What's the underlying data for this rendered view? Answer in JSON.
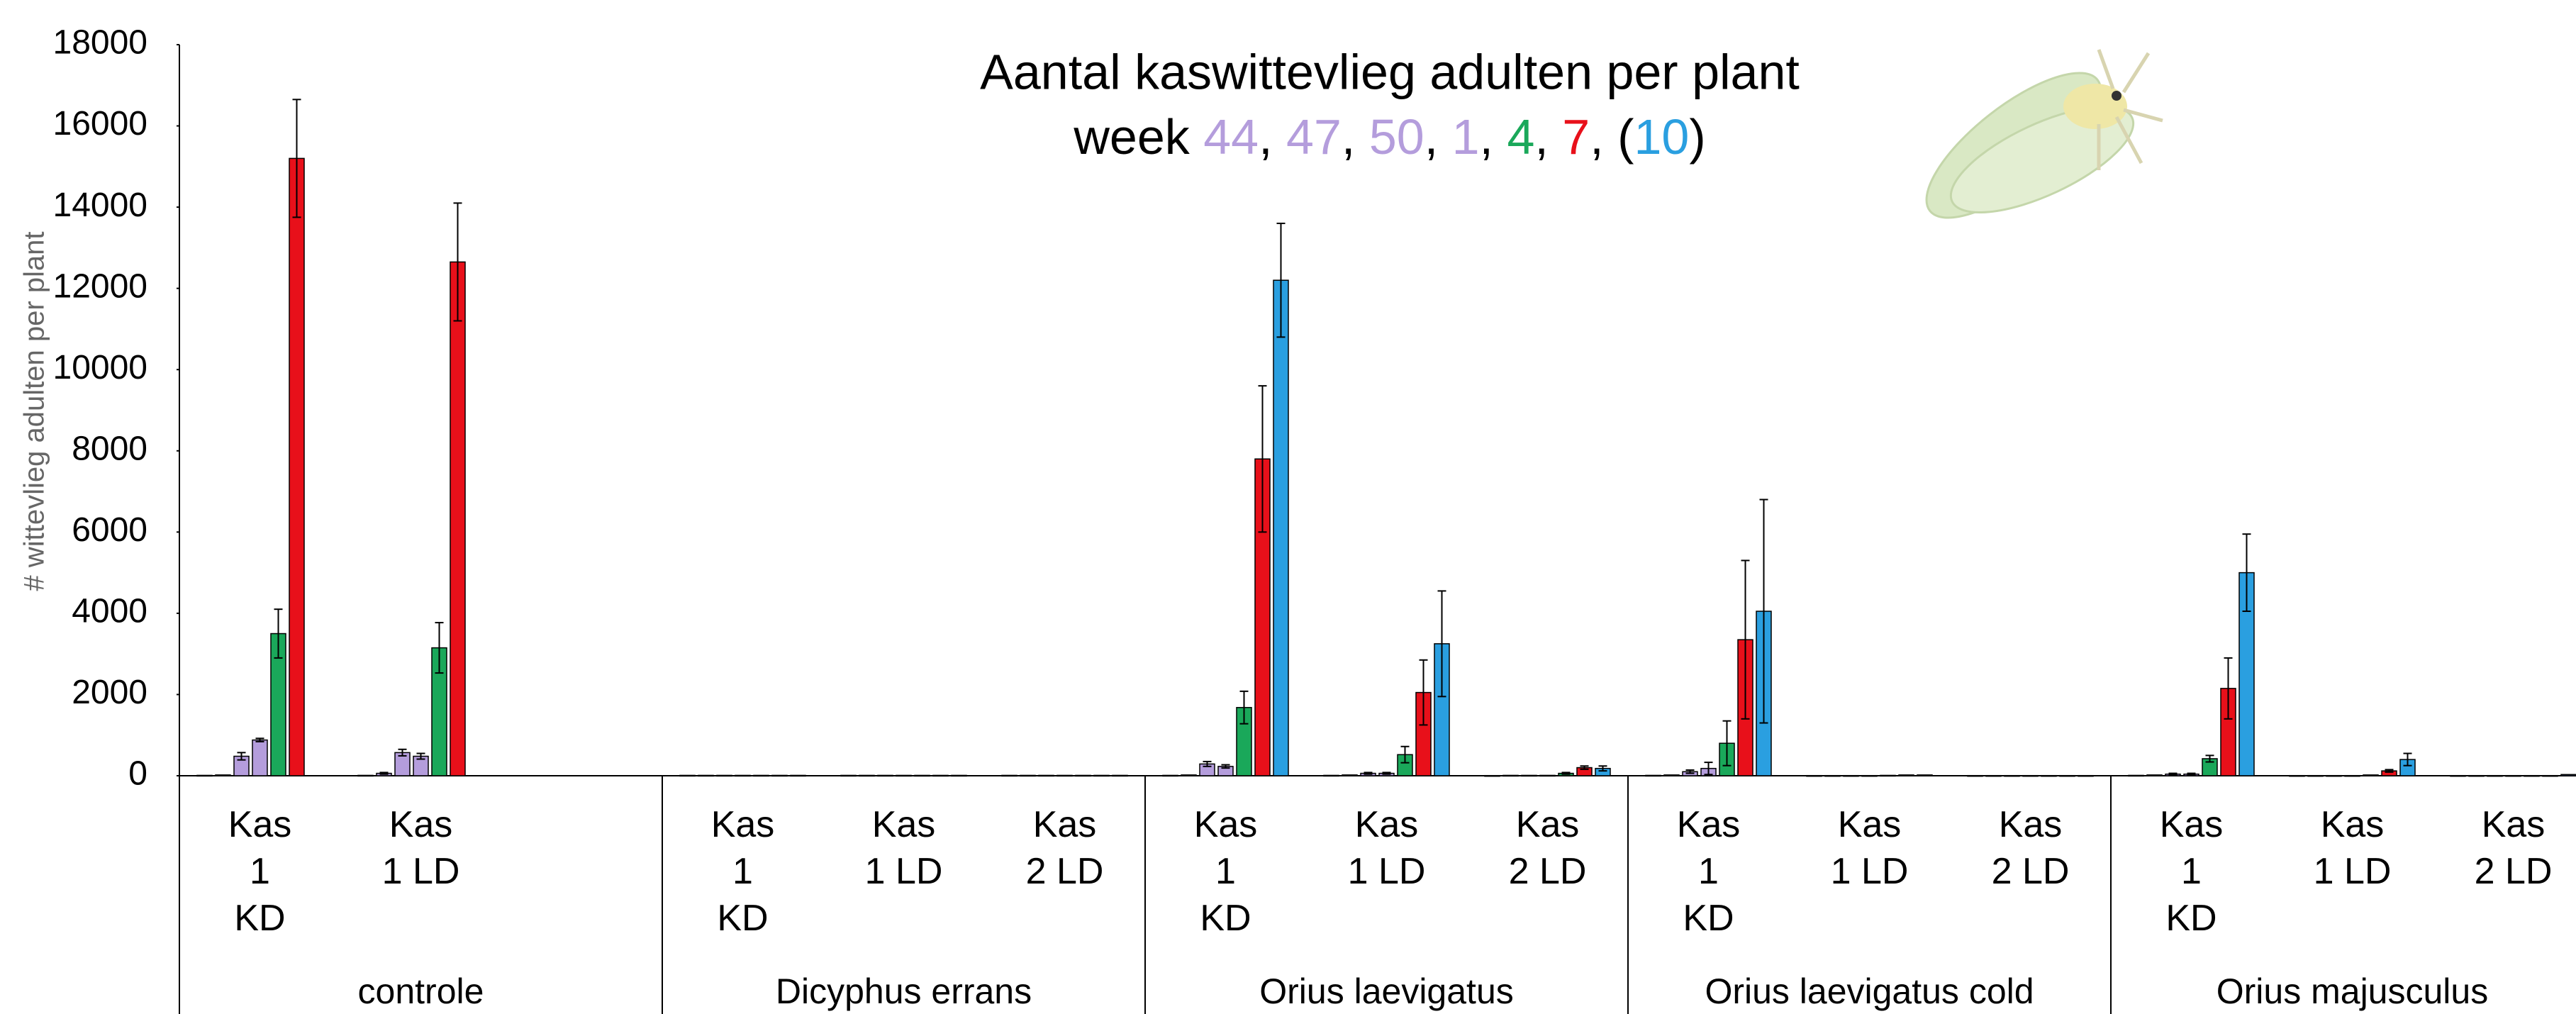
{
  "chart_data": {
    "type": "bar",
    "title": "Aantal kaswittevlieg adulten per plant",
    "legend": {
      "prefix": "week ",
      "separator": ", ",
      "open": "(",
      "close": ")"
    },
    "y_label": "# wittevlieg adulten per plant",
    "ylim": [
      0,
      18000
    ],
    "yticks": [
      0,
      2000,
      4000,
      6000,
      8000,
      10000,
      12000,
      14000,
      16000,
      18000
    ],
    "groups": [
      {
        "name": "controle",
        "categories": [
          "Kas 1 KD",
          "Kas 1 LD",
          null
        ]
      },
      {
        "name": "Dicyphus errans",
        "categories": [
          "Kas 1 KD",
          "Kas 1 LD",
          "Kas 2 LD"
        ]
      },
      {
        "name": "Orius laevigatus",
        "categories": [
          "Kas 1 KD",
          "Kas 1 LD",
          "Kas 2 LD"
        ]
      },
      {
        "name": "Orius laevigatus cold",
        "categories": [
          "Kas 1 KD",
          "Kas 1 LD",
          "Kas 2 LD"
        ]
      },
      {
        "name": "Orius majusculus",
        "categories": [
          "Kas 1 KD",
          "Kas 1 LD",
          "Kas 2 LD"
        ]
      }
    ],
    "series": [
      {
        "name": "44",
        "color": "#b49ddc",
        "values": [
          10,
          10,
          null,
          10,
          10,
          10,
          10,
          10,
          5,
          10,
          5,
          5,
          10,
          5,
          5
        ],
        "errors": [
          null,
          null,
          null,
          null,
          null,
          null,
          null,
          null,
          null,
          null,
          null,
          null,
          null,
          null,
          null
        ]
      },
      {
        "name": "47",
        "color": "#b49ddc",
        "values": [
          20,
          60,
          null,
          10,
          10,
          10,
          20,
          20,
          10,
          20,
          5,
          5,
          20,
          5,
          5
        ],
        "errors": [
          null,
          20,
          null,
          null,
          null,
          null,
          null,
          null,
          null,
          null,
          null,
          null,
          null,
          null,
          null
        ]
      },
      {
        "name": "50",
        "color": "#b49ddc",
        "values": [
          480,
          570,
          null,
          10,
          10,
          10,
          290,
          60,
          10,
          100,
          5,
          5,
          40,
          5,
          5
        ],
        "errors": [
          90,
          80,
          null,
          null,
          null,
          null,
          60,
          20,
          null,
          40,
          null,
          null,
          20,
          null,
          null
        ]
      },
      {
        "name": "1",
        "color": "#b49ddc",
        "values": [
          880,
          480,
          null,
          10,
          10,
          10,
          230,
          60,
          10,
          180,
          5,
          5,
          40,
          5,
          5
        ],
        "errors": [
          40,
          70,
          null,
          null,
          null,
          null,
          40,
          20,
          null,
          150,
          null,
          null,
          20,
          null,
          null
        ]
      },
      {
        "name": "4",
        "color": "#1aa85a",
        "values": [
          3500,
          3150,
          null,
          10,
          10,
          10,
          1680,
          520,
          60,
          800,
          10,
          5,
          420,
          20,
          5
        ],
        "errors": [
          600,
          620,
          null,
          null,
          null,
          null,
          400,
          200,
          20,
          550,
          null,
          null,
          80,
          null,
          null
        ]
      },
      {
        "name": "7",
        "color": "#e8101a",
        "values": [
          15200,
          12650,
          null,
          10,
          10,
          10,
          7800,
          2050,
          200,
          3350,
          20,
          5,
          2150,
          120,
          5
        ],
        "errors": [
          1450,
          1450,
          null,
          null,
          null,
          null,
          1800,
          800,
          40,
          1950,
          null,
          null,
          750,
          30,
          null
        ]
      },
      {
        "name": "10",
        "color": "#2a9fe0",
        "legend_brackets": true,
        "values": [
          null,
          null,
          null,
          10,
          10,
          10,
          12200,
          3250,
          180,
          4050,
          20,
          5,
          5000,
          400,
          30
        ],
        "errors": [
          null,
          null,
          null,
          null,
          null,
          null,
          1400,
          1300,
          60,
          2750,
          null,
          null,
          950,
          150,
          null
        ]
      }
    ]
  }
}
